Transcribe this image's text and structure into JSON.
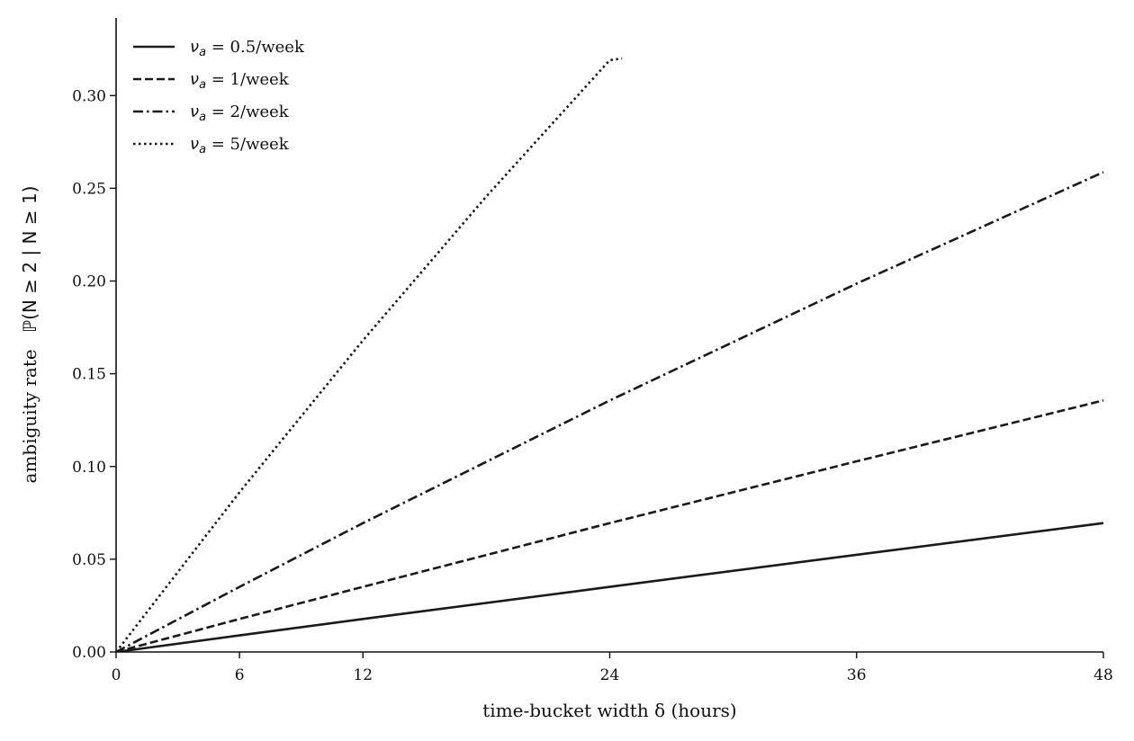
{
  "chart_data": {
    "type": "line",
    "title": "",
    "xlabel": "time-bucket width  δ  (hours)",
    "ylabel": "ambiguity rate  ℙ(N ≥ 2 | N ≥ 1)",
    "ylabel_parts": {
      "text": "ambiguity rate",
      "math": "ℙ(N ≥ 2 | N ≥ 1)"
    },
    "xlim": [
      0,
      48
    ],
    "ylim": [
      0,
      0.32
    ],
    "x_ticks": [
      0,
      6,
      12,
      24,
      36,
      48
    ],
    "x_tick_labels": [
      "0",
      "6",
      "12",
      "24",
      "36",
      "48"
    ],
    "y_ticks": [
      0,
      0.05,
      0.1,
      0.15,
      0.2,
      0.25,
      0.3
    ],
    "y_tick_labels": [
      "0.00",
      "0.05",
      "0.10",
      "0.15",
      "0.20",
      "0.25",
      "0.30"
    ],
    "grid": false,
    "legend_position": "top-left",
    "line_color": "#1a1a1a",
    "series": [
      {
        "name": "ν_a = 0.5/week",
        "sym": "ν",
        "sub": "a",
        "rest": " = 0.5/week",
        "rate_per_week": 0.5,
        "linestyle": "solid",
        "x": [
          0,
          6,
          12,
          24,
          36,
          48
        ],
        "y": [
          0,
          0.0089,
          0.0178,
          0.0351,
          0.0524,
          0.0695
        ]
      },
      {
        "name": "ν_a = 1/week",
        "sym": "ν",
        "sub": "a",
        "rest": " = 1/week",
        "rate_per_week": 1,
        "linestyle": "dashed",
        "x": [
          0,
          6,
          12,
          24,
          36,
          48
        ],
        "y": [
          0,
          0.0178,
          0.0351,
          0.0695,
          0.1028,
          0.1356
        ]
      },
      {
        "name": "ν_a = 2/week",
        "sym": "ν",
        "sub": "a",
        "rest": " = 2/week",
        "rate_per_week": 2,
        "linestyle": "dashdot",
        "x": [
          0,
          6,
          12,
          24,
          36,
          48
        ],
        "y": [
          0,
          0.0351,
          0.0695,
          0.1356,
          0.1986,
          0.2587
        ]
      },
      {
        "name": "ν_a = 5/week",
        "sym": "ν",
        "sub": "a",
        "rest": " = 5/week",
        "rate_per_week": 5,
        "linestyle": "dotted",
        "x": [
          0,
          6,
          12,
          18,
          24,
          24.6
        ],
        "y": [
          0,
          0.0861,
          0.168,
          0.2456,
          0.3191,
          0.32
        ]
      }
    ]
  }
}
